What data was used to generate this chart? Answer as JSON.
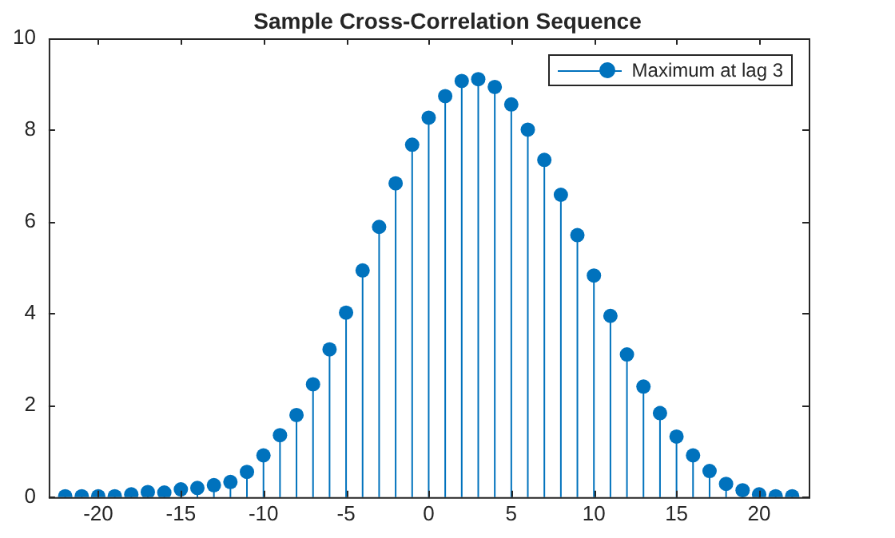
{
  "chart_data": {
    "type": "lollipop",
    "title": "Sample Cross-Correlation Sequence",
    "x": [
      -22,
      -21,
      -20,
      -19,
      -18,
      -17,
      -16,
      -15,
      -14,
      -13,
      -12,
      -11,
      -10,
      -9,
      -8,
      -7,
      -6,
      -5,
      -4,
      -3,
      -2,
      -1,
      0,
      1,
      2,
      3,
      4,
      5,
      6,
      7,
      8,
      9,
      10,
      11,
      12,
      13,
      14,
      15,
      16,
      17,
      18,
      19,
      20,
      21,
      22
    ],
    "series": [
      {
        "name": "Maximum at lag 3",
        "color": "#0072bd",
        "values": [
          0.02,
          0.02,
          0.02,
          0.02,
          0.06,
          0.11,
          0.1,
          0.17,
          0.2,
          0.26,
          0.33,
          0.55,
          0.91,
          1.35,
          1.79,
          2.46,
          3.22,
          4.02,
          4.94,
          5.89,
          6.84,
          7.68,
          8.27,
          8.74,
          9.07,
          9.11,
          8.94,
          8.56,
          8.01,
          7.35,
          6.59,
          5.71,
          4.83,
          3.95,
          3.11,
          2.41,
          1.83,
          1.32,
          0.91,
          0.57,
          0.29,
          0.15,
          0.06,
          0.02,
          0.02
        ]
      }
    ],
    "xlim": [
      -23,
      23
    ],
    "xticks": [
      -20,
      -15,
      -10,
      -5,
      0,
      5,
      10,
      15,
      20
    ],
    "ylim": [
      0,
      10
    ],
    "yticks": [
      0,
      2,
      4,
      6,
      8,
      10
    ],
    "legend": "top right",
    "marker": "circle"
  }
}
